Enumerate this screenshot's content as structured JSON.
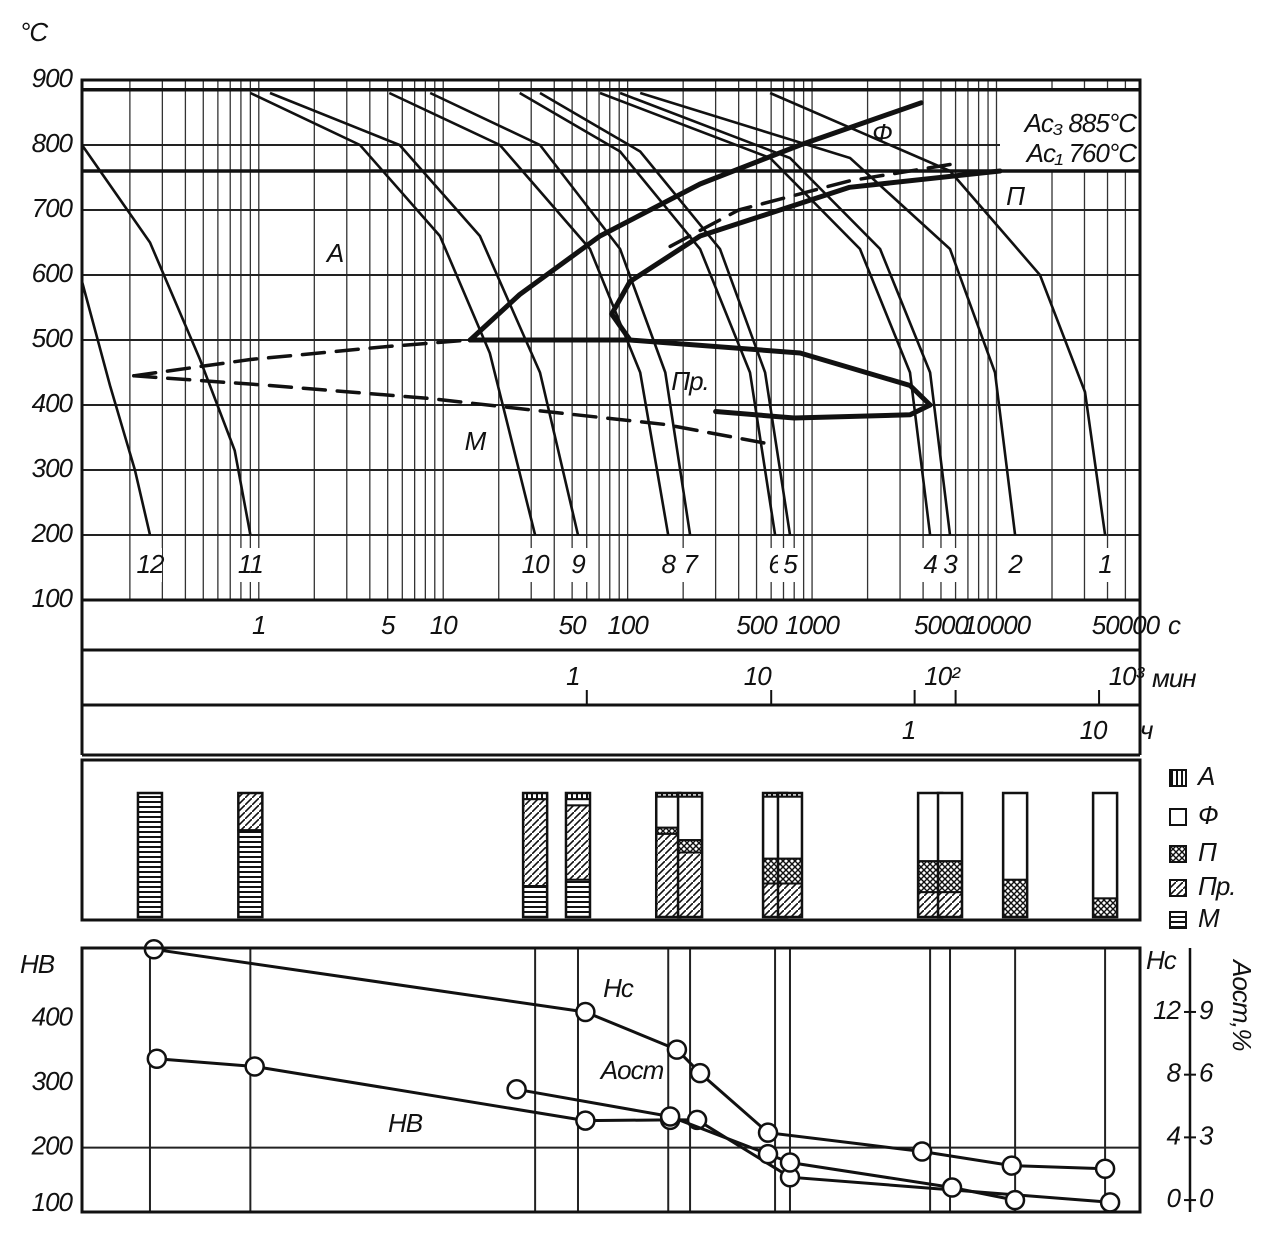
{
  "chart_data": [
    {
      "type": "line",
      "xscale": "log",
      "ylabel": "°C",
      "ylim": [
        100,
        900
      ],
      "yticks": [
        100,
        200,
        300,
        400,
        500,
        600,
        700,
        800,
        900
      ],
      "xlim": [
        0.11,
        60000
      ],
      "xlabel": "с",
      "xticks": [
        1,
        5,
        10,
        50,
        100,
        500,
        1000,
        5000,
        10000,
        50000
      ],
      "xgrid": [
        0.2,
        0.3,
        0.4,
        0.5,
        0.6,
        0.7,
        0.8,
        0.9,
        1,
        2,
        3,
        4,
        5,
        6,
        7,
        8,
        9,
        10,
        20,
        30,
        40,
        50,
        60,
        70,
        80,
        90,
        100,
        200,
        300,
        400,
        500,
        600,
        700,
        800,
        900,
        1000,
        2000,
        3000,
        4000,
        5000,
        6000,
        7000,
        8000,
        9000,
        10000,
        20000,
        30000,
        40000,
        50000
      ],
      "grid": true,
      "minute_axis": {
        "label": "мин",
        "lim": [
          0.00183,
          1000
        ],
        "ticks": [
          1,
          10,
          {
            "value": 100,
            "label": "10²"
          },
          {
            "value": 1000,
            "label": "10³"
          }
        ]
      },
      "hour_axis": {
        "label": "ч",
        "lim": [
          3.06e-05,
          16.67
        ],
        "ticks": [
          1,
          10
        ]
      },
      "reference_lines": [
        {
          "value": 885,
          "label": "Ac₃ 885°C"
        },
        {
          "value": 760,
          "label": "Ac₁ 760°C"
        }
      ],
      "color": "#111111",
      "series": [
        {
          "name": "12",
          "x": [
            0.11,
            0.156,
            0.213,
            0.257
          ],
          "values": [
            590,
            430,
            300,
            200
          ]
        },
        {
          "name": "11",
          "x": [
            0.11,
            0.257,
            0.48,
            0.74,
            0.9
          ],
          "values": [
            800,
            650,
            470,
            330,
            200
          ]
        },
        {
          "name": "10",
          "x": [
            0.9,
            3.54,
            9.6,
            17.9,
            31.5
          ],
          "values": [
            880,
            800,
            660,
            480,
            200
          ]
        },
        {
          "name": "9",
          "x": [
            1.15,
            5.8,
            15.8,
            33.5,
            53.8
          ],
          "values": [
            880,
            800,
            660,
            450,
            200
          ]
        },
        {
          "name": "8",
          "x": [
            5.1,
            20.3,
            62.5,
            117,
            166
          ],
          "values": [
            880,
            800,
            640,
            450,
            200
          ]
        },
        {
          "name": "7",
          "x": [
            8.5,
            33.5,
            91,
            160,
            218
          ],
          "values": [
            880,
            800,
            640,
            450,
            200
          ]
        },
        {
          "name": "6",
          "x": [
            26,
            91,
            247,
            461,
            630
          ],
          "values": [
            880,
            790,
            640,
            450,
            200
          ]
        },
        {
          "name": "5",
          "x": [
            33.5,
            117,
            317,
            556,
            759
          ],
          "values": [
            880,
            790,
            640,
            450,
            200
          ]
        },
        {
          "name": "4",
          "x": [
            70.8,
            592,
            1820,
            3396,
            4365
          ],
          "values": [
            880,
            780,
            640,
            450,
            200
          ]
        },
        {
          "name": "3",
          "x": [
            91,
            759,
            2339,
            4365,
            5598
          ],
          "values": [
            880,
            780,
            640,
            450,
            200
          ]
        },
        {
          "name": "2",
          "x": [
            117,
            1607,
            5598,
            9817,
            12618
          ],
          "values": [
            880,
            780,
            640,
            450,
            200
          ]
        },
        {
          "name": "1",
          "x": [
            592,
            5598,
            17220,
            30200,
            38800
          ],
          "values": [
            880,
            760,
            600,
            420,
            200
          ]
        }
      ],
      "transformation_lines": [
        {
          "x": [
            14,
            26,
            70.8,
            247,
            861,
            3900
          ],
          "values": [
            500,
            570,
            660,
            740,
            800,
            865
          ],
          "dashed": false
        },
        {
          "x": [
            10450,
            1600,
            247,
            103,
            82,
            103
          ],
          "values": [
            760,
            735,
            660,
            590,
            540,
            500
          ],
          "dashed": false
        },
        {
          "x": [
            5600,
            1600,
            400,
            160
          ],
          "values": [
            770,
            745,
            700,
            640
          ],
          "dashed": true
        },
        {
          "x": [
            14,
            103,
            861,
            3400,
            4365,
            3400,
            800,
            300
          ],
          "values": [
            500,
            500,
            480,
            430,
            400,
            385,
            380,
            390
          ],
          "dashed": false
        },
        {
          "x": [
            0.21,
            0.9,
            5,
            14
          ],
          "values": [
            445,
            470,
            490,
            500
          ],
          "dashed": true
        },
        {
          "x": [
            0.21,
            1.15,
            8.5,
            25,
            160,
            590
          ],
          "values": [
            445,
            430,
            410,
            395,
            370,
            340
          ],
          "dashed": true
        }
      ],
      "annotations": [
        "А",
        "Ф",
        "П",
        "Пр.",
        "М"
      ]
    },
    {
      "type": "stacked_bar",
      "xscale": "log",
      "xlim": [
        0.11,
        60000
      ],
      "x": [
        0.257,
        0.9,
        31.5,
        53.8,
        166,
        218,
        630,
        759,
        4365,
        5598,
        12618,
        38800
      ],
      "series": [
        {
          "name": "А",
          "pattern": "vertical",
          "values": [
            0,
            0,
            5,
            5,
            3,
            3,
            3,
            3,
            0,
            0,
            0,
            0
          ]
        },
        {
          "name": "Ф",
          "pattern": "none",
          "values": [
            0,
            0,
            0,
            5,
            25,
            35,
            50,
            50,
            55,
            55,
            70,
            85
          ]
        },
        {
          "name": "П",
          "pattern": "cross",
          "values": [
            0,
            0,
            0,
            0,
            5,
            10,
            20,
            20,
            25,
            25,
            30,
            15
          ]
        },
        {
          "name": "Пр.",
          "pattern": "diagonal",
          "values": [
            0,
            30,
            70,
            60,
            67,
            52,
            27,
            27,
            20,
            20,
            0,
            0
          ]
        },
        {
          "name": "М",
          "pattern": "horizontal",
          "values": [
            100,
            70,
            25,
            30,
            0,
            0,
            0,
            0,
            0,
            0,
            0,
            0
          ]
        }
      ]
    },
    {
      "type": "line",
      "xscale": "log",
      "xlim": [
        0.11,
        60000
      ],
      "ylabel": "HB",
      "ylim": [
        100,
        510
      ],
      "yticks": [
        100,
        200,
        300,
        400
      ],
      "y2label": "Hc",
      "y2lim": [
        -0.76,
        16.08
      ],
      "y2ticks": [
        0,
        4,
        8,
        12
      ],
      "y3label": "Aост,%",
      "y3lim": [
        -0.57,
        12.06
      ],
      "y3ticks": [
        0,
        3,
        6,
        9
      ],
      "grid": true,
      "series": [
        {
          "name": "HB",
          "axis": "y",
          "x": [
            0.28,
            0.95,
            59,
            170,
            238,
            759,
            41300
          ],
          "values": [
            338,
            326,
            242,
            243,
            243,
            154,
            115
          ]
        },
        {
          "name": "Hc",
          "axis": "y2",
          "x": [
            0.27,
            59,
            185,
            247,
            577,
            3950,
            12100,
            38800
          ],
          "values": [
            16,
            12,
            9.6,
            8.1,
            4.3,
            3.1,
            2.2,
            2.0
          ]
        },
        {
          "name": "Aост",
          "axis": "y3",
          "x": [
            25,
            170,
            577,
            759,
            5740,
            12600
          ],
          "values": [
            5.3,
            4.0,
            2.2,
            1.8,
            0.6,
            0
          ]
        }
      ]
    }
  ]
}
